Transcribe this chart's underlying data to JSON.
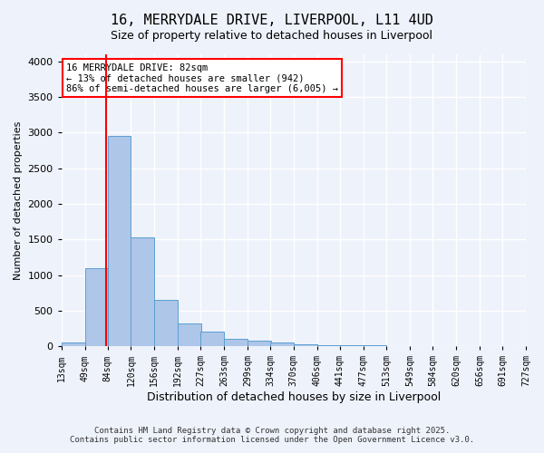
{
  "title_line1": "16, MERRYDALE DRIVE, LIVERPOOL, L11 4UD",
  "title_line2": "Size of property relative to detached houses in Liverpool",
  "xlabel": "Distribution of detached houses by size in Liverpool",
  "ylabel": "Number of detached properties",
  "footer_line1": "Contains HM Land Registry data © Crown copyright and database right 2025.",
  "footer_line2": "Contains public sector information licensed under the Open Government Licence v3.0.",
  "annotation_line1": "16 MERRYDALE DRIVE: 82sqm",
  "annotation_line2": "← 13% of detached houses are smaller (942)",
  "annotation_line3": "86% of semi-detached houses are larger (6,005) →",
  "bar_edges": [
    13,
    49,
    84,
    120,
    156,
    192,
    227,
    263,
    299,
    334,
    370,
    406,
    441,
    477,
    513,
    549,
    584,
    620,
    656,
    691,
    727
  ],
  "bar_heights": [
    50,
    1100,
    2950,
    1530,
    650,
    320,
    200,
    100,
    80,
    50,
    30,
    20,
    15,
    10,
    8,
    6,
    5,
    4,
    3,
    2
  ],
  "bar_color": "#aec6e8",
  "bar_edgecolor": "#5a9fd4",
  "property_line_x": 82,
  "property_line_color": "red",
  "ylim": [
    0,
    4100
  ],
  "yticks": [
    0,
    500,
    1000,
    1500,
    2000,
    2500,
    3000,
    3500,
    4000
  ],
  "bg_color": "#eef2fb",
  "grid_color": "white",
  "annotation_box_edgecolor": "red",
  "annotation_box_facecolor": "white"
}
